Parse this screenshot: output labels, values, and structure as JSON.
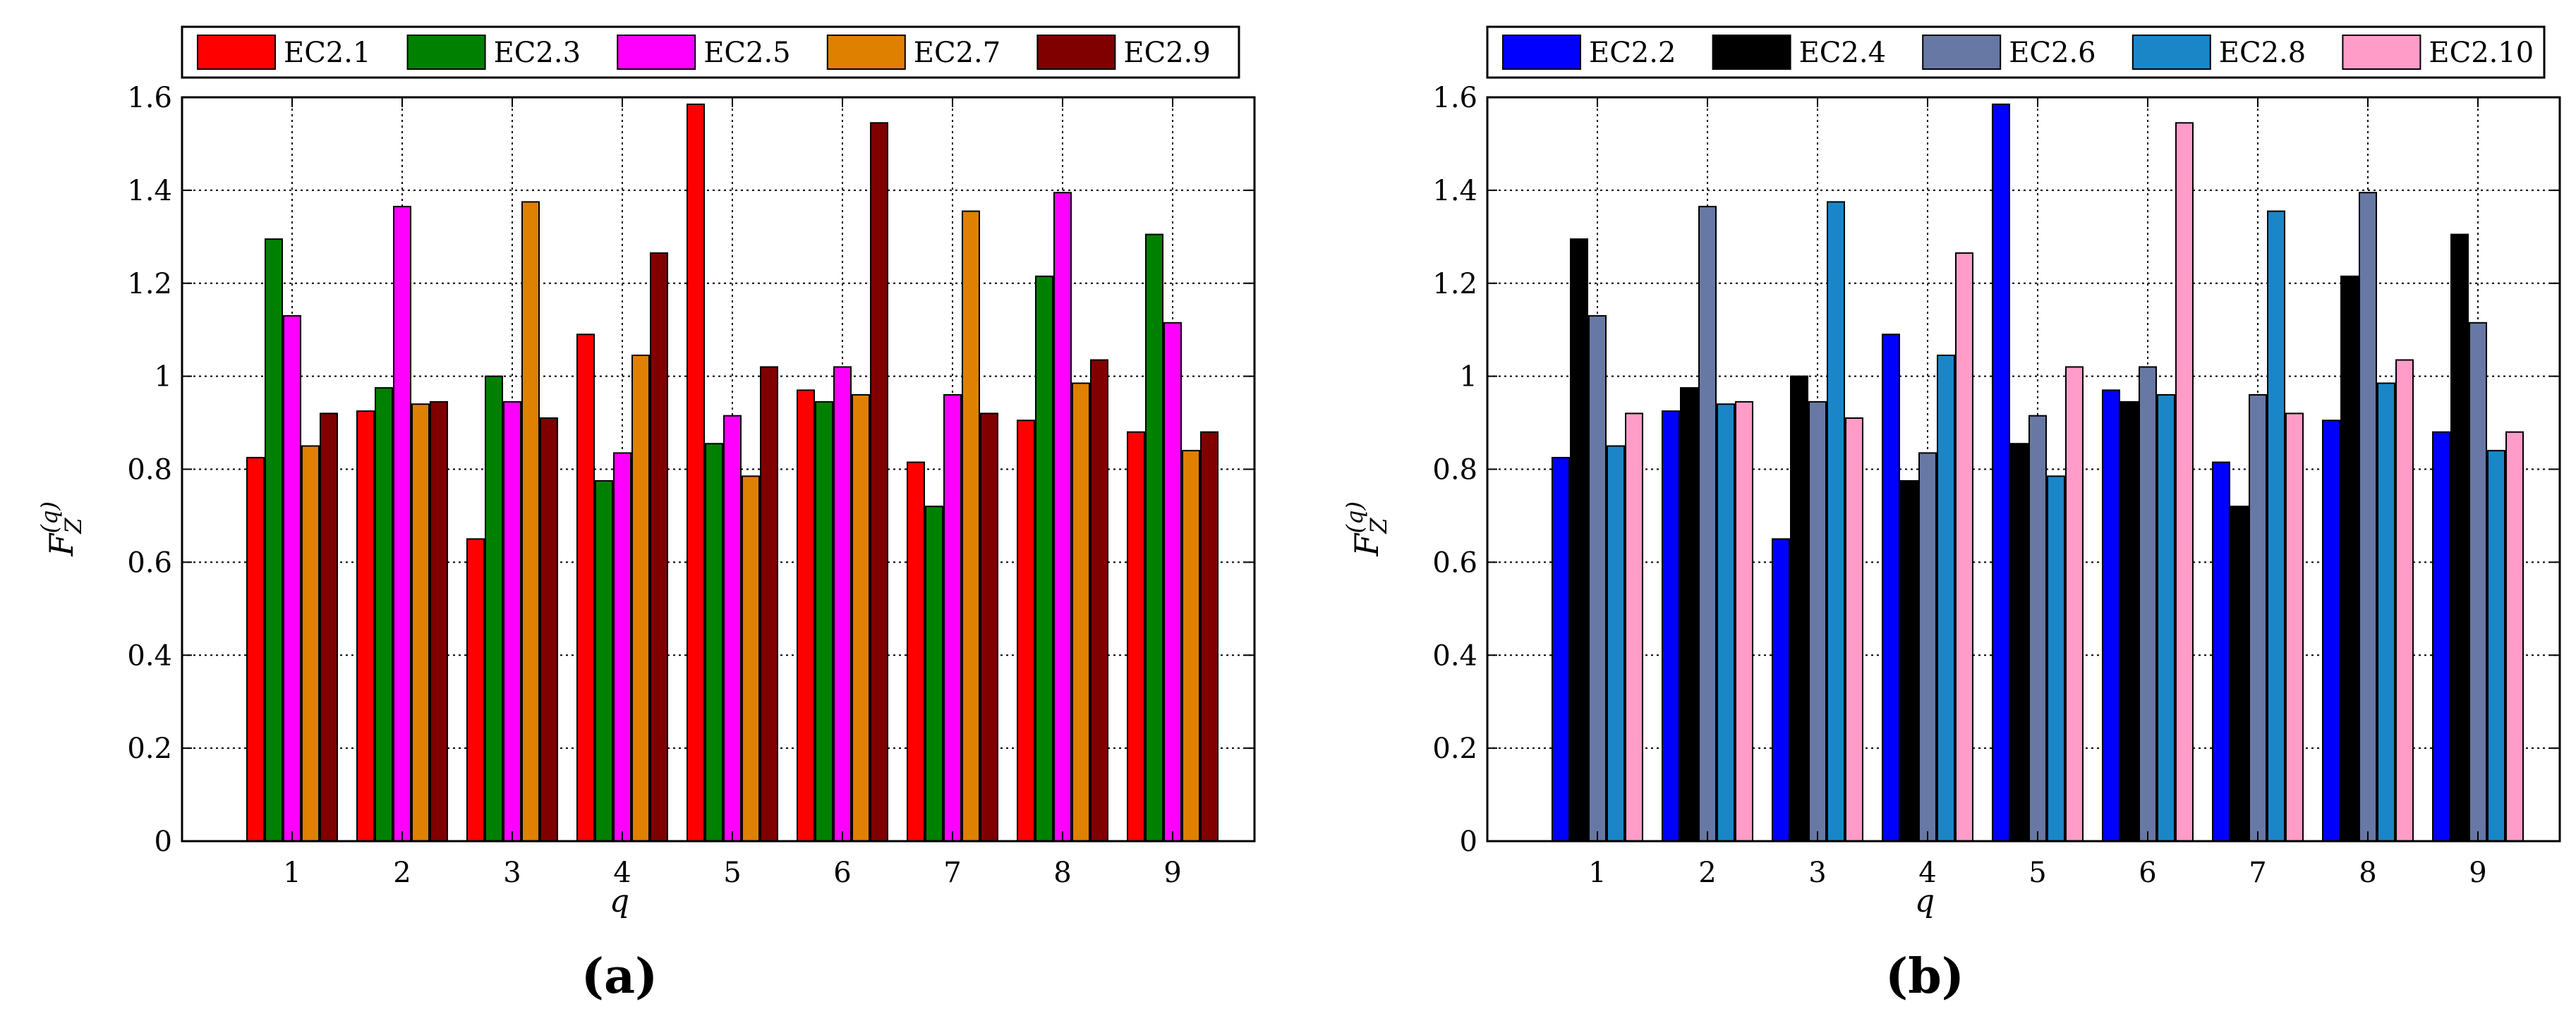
{
  "chart_data": [
    {
      "type": "bar",
      "panel_label": "(a)",
      "xlabel": "q",
      "ylabel": {
        "main": "F",
        "sub": "Z",
        "sup": "(q)"
      },
      "categories": [
        "1",
        "2",
        "3",
        "4",
        "5",
        "6",
        "7",
        "8",
        "9"
      ],
      "ylim": [
        0,
        1.6
      ],
      "yticks": [
        "0",
        "0.2",
        "0.4",
        "0.6",
        "0.8",
        "1",
        "1.2",
        "1.4",
        "1.6"
      ],
      "grid": true,
      "legend_position": "top",
      "series": [
        {
          "name": "EC2.1",
          "color": "#ff0000",
          "values": [
            0.825,
            0.925,
            0.65,
            1.09,
            1.585,
            0.97,
            0.815,
            0.905,
            0.88
          ]
        },
        {
          "name": "EC2.3",
          "color": "#008000",
          "values": [
            1.295,
            0.975,
            1.0,
            0.775,
            0.855,
            0.945,
            0.72,
            1.215,
            1.305
          ]
        },
        {
          "name": "EC2.5",
          "color": "#ff00ff",
          "values": [
            1.13,
            1.365,
            0.945,
            0.835,
            0.915,
            1.02,
            0.96,
            1.395,
            1.115
          ]
        },
        {
          "name": "EC2.7",
          "color": "#e08000",
          "values": [
            0.85,
            0.94,
            1.375,
            1.045,
            0.785,
            0.96,
            1.355,
            0.985,
            0.84
          ]
        },
        {
          "name": "EC2.9",
          "color": "#800000",
          "values": [
            0.92,
            0.945,
            0.91,
            1.265,
            1.02,
            1.545,
            0.92,
            1.035,
            0.88
          ]
        }
      ]
    },
    {
      "type": "bar",
      "panel_label": "(b)",
      "xlabel": "q",
      "ylabel": {
        "main": "F",
        "sub": "Z",
        "sup": "(q)"
      },
      "categories": [
        "1",
        "2",
        "3",
        "4",
        "5",
        "6",
        "7",
        "8",
        "9"
      ],
      "ylim": [
        0,
        1.6
      ],
      "yticks": [
        "0",
        "0.2",
        "0.4",
        "0.6",
        "0.8",
        "1",
        "1.2",
        "1.4",
        "1.6"
      ],
      "grid": true,
      "legend_position": "top",
      "series": [
        {
          "name": "EC2.2",
          "color": "#0000ff",
          "values": [
            0.825,
            0.925,
            0.65,
            1.09,
            1.585,
            0.97,
            0.815,
            0.905,
            0.88
          ]
        },
        {
          "name": "EC2.4",
          "color": "#000000",
          "values": [
            1.295,
            0.975,
            1.0,
            0.775,
            0.855,
            0.945,
            0.72,
            1.215,
            1.305
          ]
        },
        {
          "name": "EC2.6",
          "color": "#6878a4",
          "values": [
            1.13,
            1.365,
            0.945,
            0.835,
            0.915,
            1.02,
            0.96,
            1.395,
            1.115
          ]
        },
        {
          "name": "EC2.8",
          "color": "#1a86c8",
          "values": [
            0.85,
            0.94,
            1.375,
            1.045,
            0.785,
            0.96,
            1.355,
            0.985,
            0.84
          ]
        },
        {
          "name": "EC2.10",
          "color": "#ff9cc8",
          "values": [
            0.92,
            0.945,
            0.91,
            1.265,
            1.02,
            1.545,
            0.92,
            1.035,
            0.88
          ]
        }
      ]
    }
  ]
}
